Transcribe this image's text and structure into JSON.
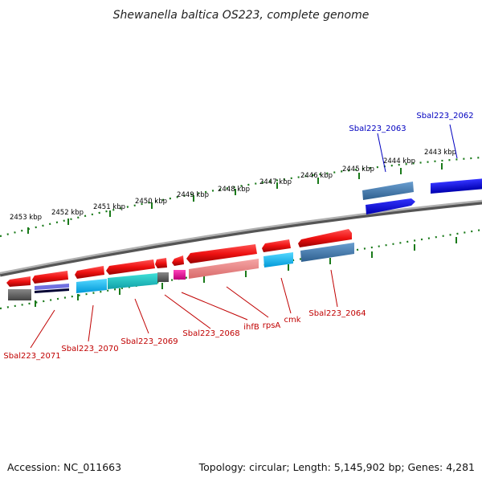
{
  "title": "Shewanella baltica OS223, complete genome",
  "footer": {
    "accession": "Accession: NC_011663",
    "topology": "Topology: circular; Length: 5,145,902 bp; Genes: 4,281"
  },
  "tick_labels": [
    "2443 kbp",
    "2444 kbp",
    "2445 kbp",
    "2446 kbp",
    "2447 kbp",
    "2448 kbp",
    "2449 kbp",
    "2450 kbp",
    "2451 kbp",
    "2452 kbp",
    "2453 kbp"
  ],
  "gene_labels": {
    "sbal2062": "Sbal223_2062",
    "sbal2063": "Sbal223_2063",
    "sbal2064": "Sbal223_2064",
    "cmk": "cmk",
    "rpsA": "rpsA",
    "ihfB": "ihfB",
    "sbal2068": "Sbal223_2068",
    "sbal2069": "Sbal223_2069",
    "sbal2070": "Sbal223_2070",
    "sbal2071": "Sbal223_2071"
  },
  "colors": {
    "forward_red": "#ee1111",
    "reverse_salmon": "#f08080",
    "cyan": "#00bfff",
    "teal": "#20c0c0",
    "steel_blue": "#4682b4",
    "blue": "#0000ee",
    "gray": "#666666",
    "magenta": "#ee1199",
    "navy": "#2222aa",
    "ruler_green": "#1a7a1a",
    "backbone": "#888888"
  }
}
